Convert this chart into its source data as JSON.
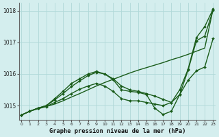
{
  "xlabel": "Graphe pression niveau de la mer (hPa)",
  "bg_color": "#d4eeee",
  "grid_color": "#b0d8d8",
  "line_color": "#1a5c1a",
  "xlim": [
    -0.3,
    23.3
  ],
  "ylim": [
    1014.55,
    1018.25
  ],
  "x_ticks": [
    0,
    1,
    2,
    3,
    4,
    5,
    6,
    7,
    8,
    9,
    10,
    11,
    12,
    13,
    14,
    15,
    16,
    17,
    18,
    19,
    20,
    21,
    22,
    23
  ],
  "y_ticks": [
    1015,
    1016,
    1017,
    1018
  ],
  "series": [
    {
      "y": [
        1014.7,
        1014.82,
        1014.9,
        1014.97,
        1015.05,
        1015.15,
        1015.27,
        1015.38,
        1015.5,
        1015.62,
        1015.73,
        1015.83,
        1015.93,
        1016.03,
        1016.12,
        1016.2,
        1016.28,
        1016.36,
        1016.45,
        1016.53,
        1016.62,
        1016.72,
        1016.82,
        1018.05
      ],
      "marker": false,
      "lw": 1.0
    },
    {
      "y": [
        1014.7,
        1014.82,
        1014.92,
        1015.0,
        1015.18,
        1015.38,
        1015.6,
        1015.78,
        1015.95,
        1016.05,
        1016.0,
        1015.85,
        1015.62,
        1015.5,
        1015.45,
        1015.38,
        1015.3,
        1015.2,
        1015.1,
        1015.5,
        1016.15,
        1017.15,
        1017.5,
        1018.05
      ],
      "marker": true,
      "lw": 1.0
    },
    {
      "y": [
        1014.7,
        1014.82,
        1014.92,
        1015.0,
        1015.22,
        1015.45,
        1015.7,
        1015.85,
        1016.0,
        1016.08,
        1016.0,
        1015.82,
        1015.5,
        1015.45,
        1015.42,
        1015.35,
        1014.92,
        1014.72,
        1014.82,
        1015.35,
        1016.12,
        1017.05,
        1017.2,
        1018.02
      ],
      "marker": true,
      "lw": 1.0
    },
    {
      "y": [
        1014.7,
        1014.82,
        1014.92,
        1014.97,
        1015.1,
        1015.22,
        1015.38,
        1015.52,
        1015.62,
        1015.7,
        1015.62,
        1015.45,
        1015.22,
        1015.15,
        1015.15,
        1015.1,
        1015.05,
        1015.0,
        1015.1,
        1015.35,
        1015.8,
        1016.1,
        1016.22,
        1017.12
      ],
      "marker": true,
      "lw": 1.0
    }
  ]
}
